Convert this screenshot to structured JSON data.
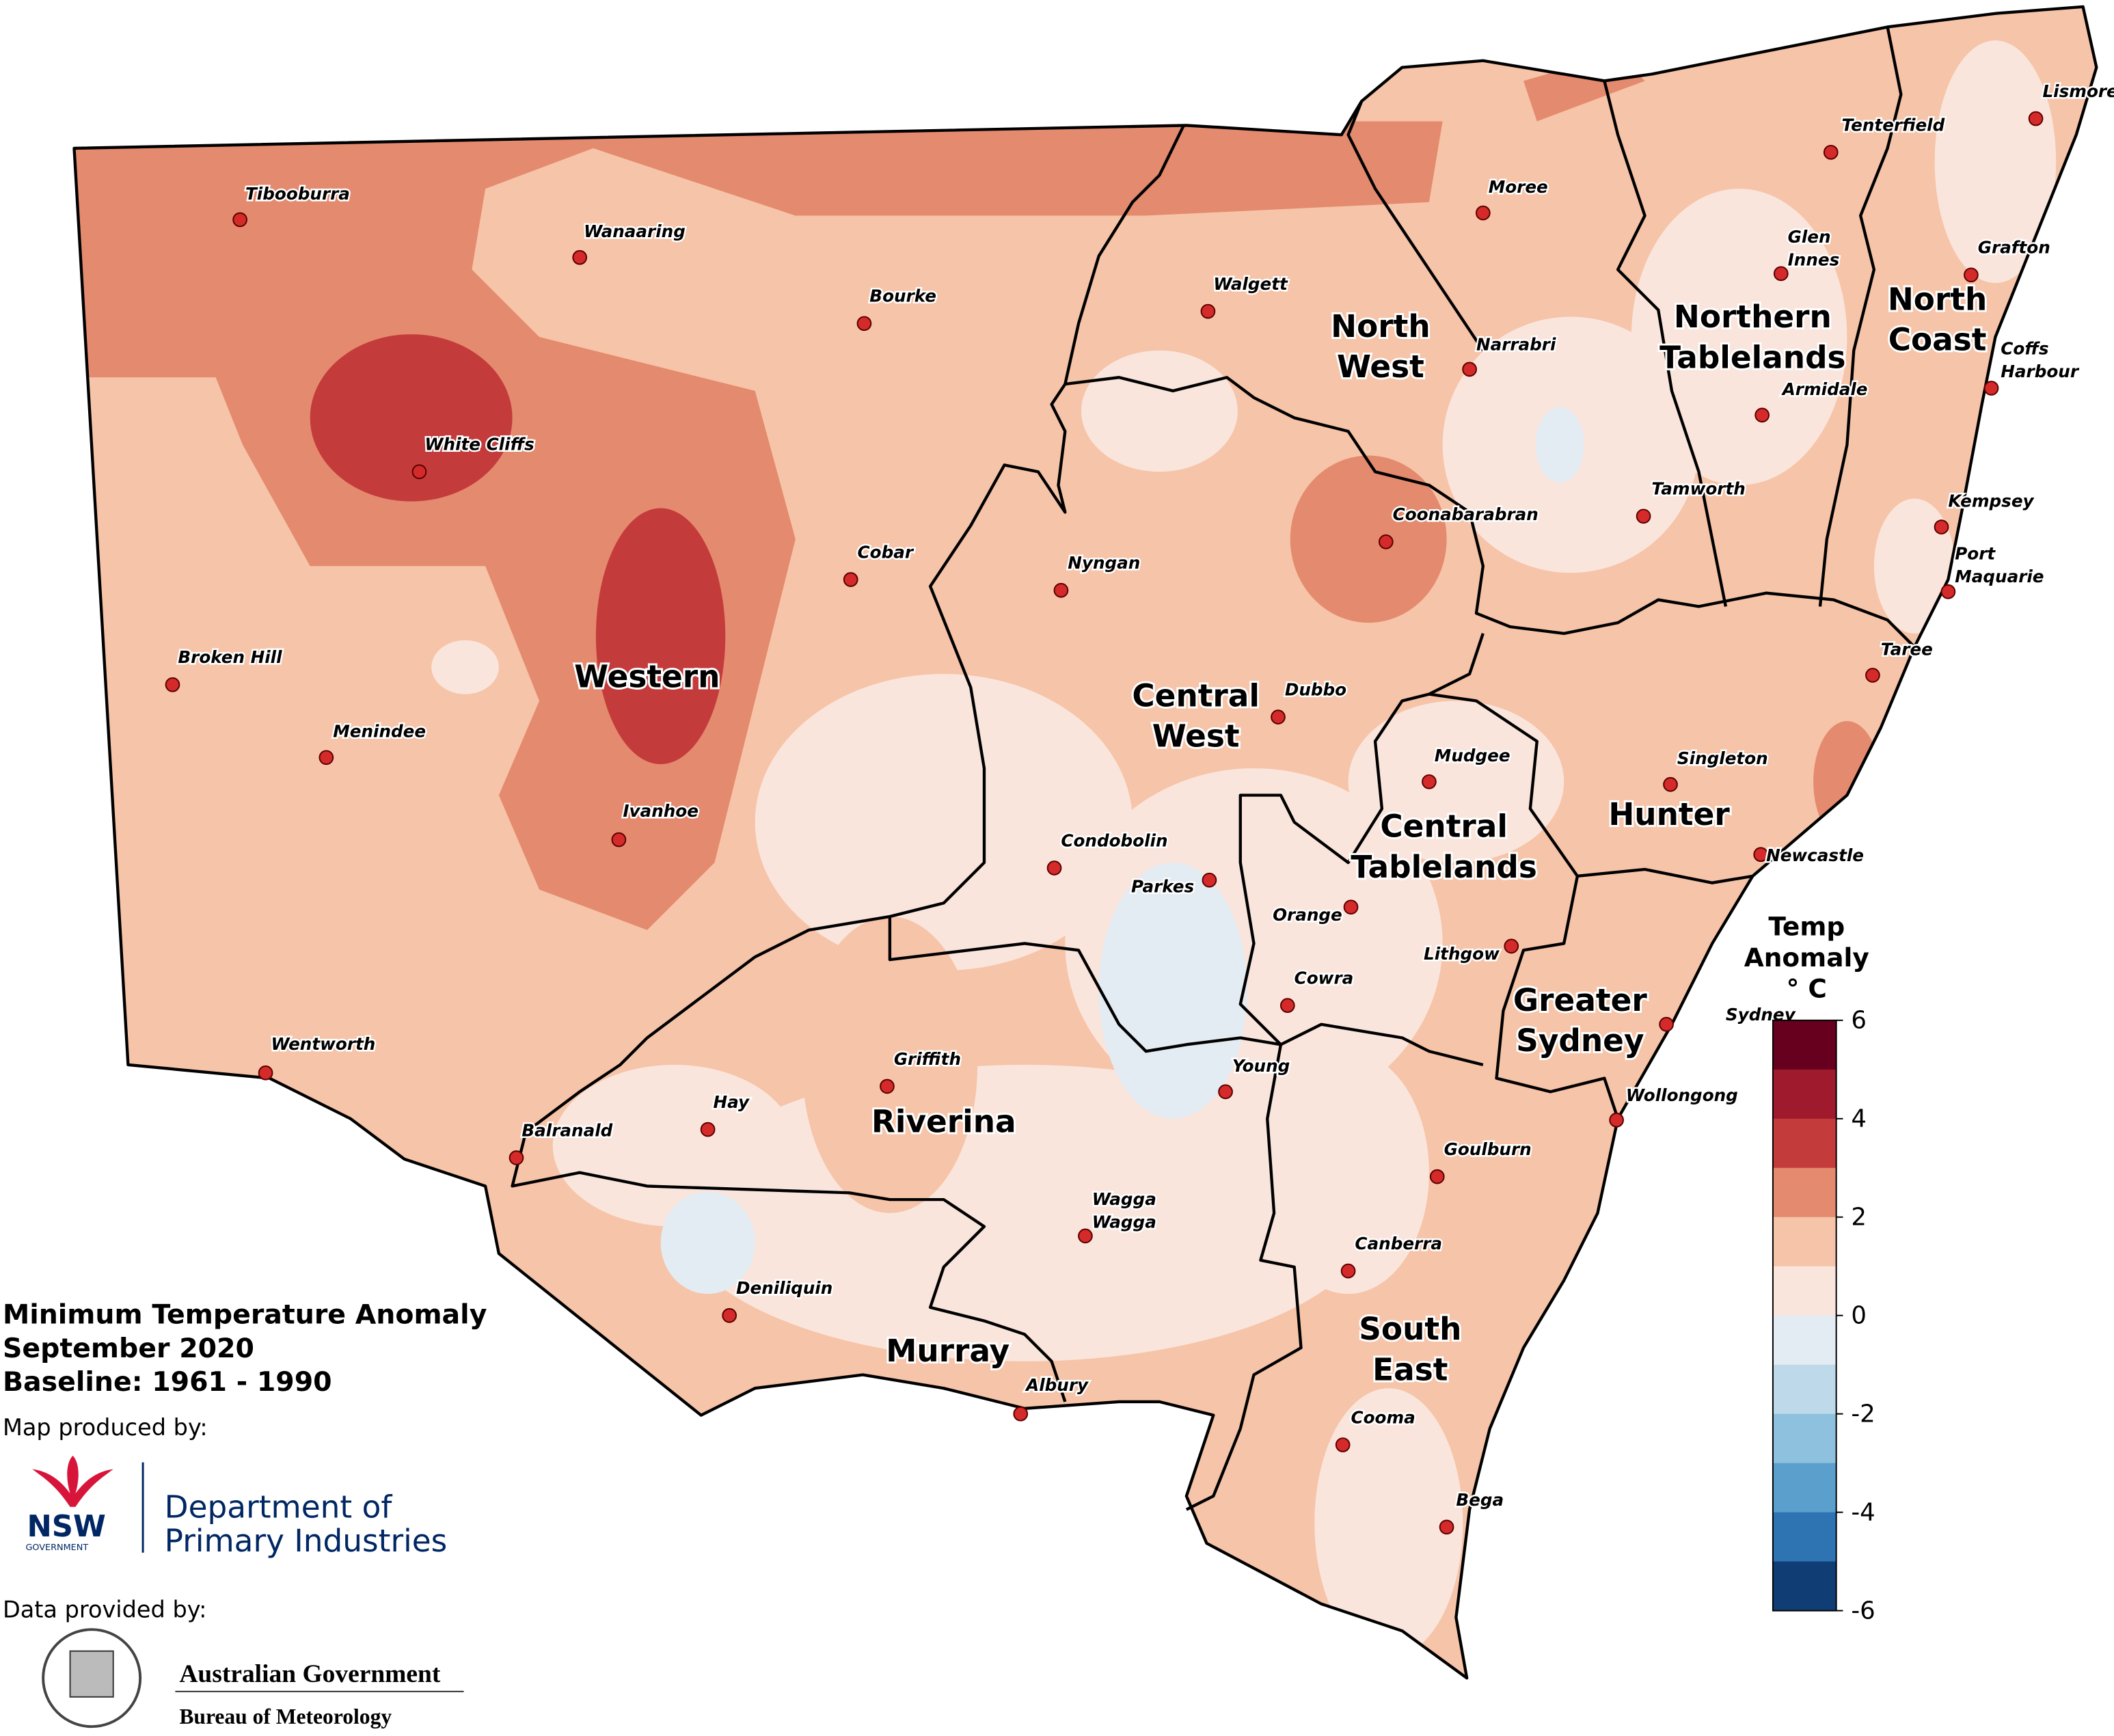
{
  "map": {
    "title": [
      "Minimum Temperature Anomaly",
      "September 2020",
      "Baseline: 1961 - 1990"
    ],
    "produced_by": "Map produced by:",
    "nsw_logo": [
      "NSW",
      "GOVERNMENT"
    ],
    "department": [
      "Department of",
      "Primary Industries"
    ],
    "data_by": "Data provided by:",
    "bom": [
      "Australian Government",
      "Bureau of Meteorology"
    ],
    "regions": [
      [
        "Western"
      ],
      [
        "North",
        "West"
      ],
      [
        "Northern",
        "Tablelands"
      ],
      [
        "North",
        "Coast"
      ],
      [
        "Central",
        "West"
      ],
      [
        "Central",
        "Tablelands"
      ],
      [
        "Hunter"
      ],
      [
        "Greater",
        "Sydney"
      ],
      [
        "Riverina"
      ],
      [
        "Murray"
      ],
      [
        "South",
        "East"
      ]
    ],
    "towns": [
      [
        "Tibooburra"
      ],
      [
        "Wanaaring"
      ],
      [
        "Bourke"
      ],
      [
        "White Cliffs"
      ],
      [
        "Moree"
      ],
      [
        "Walgett"
      ],
      [
        "Narrabri"
      ],
      [
        "Tenterfield"
      ],
      [
        "Lismore"
      ],
      [
        "Glen",
        "Innes"
      ],
      [
        "Grafton"
      ],
      [
        "Coffs",
        "Harbour"
      ],
      [
        "Armidale"
      ],
      [
        "Tamworth"
      ],
      [
        "Kempsey"
      ],
      [
        "Port",
        "Maquarie"
      ],
      [
        "Coonabarabran"
      ],
      [
        "Cobar"
      ],
      [
        "Nyngan"
      ],
      [
        "Broken Hill"
      ],
      [
        "Menindee"
      ],
      [
        "Dubbo"
      ],
      [
        "Taree"
      ],
      [
        "Mudgee"
      ],
      [
        "Singleton"
      ],
      [
        "Ivanhoe"
      ],
      [
        "Condobolin"
      ],
      [
        "Newcastle"
      ],
      [
        "Parkes"
      ],
      [
        "Orange"
      ],
      [
        "Lithgow"
      ],
      [
        "Cowra"
      ],
      [
        "Sydney"
      ],
      [
        "Wentworth"
      ],
      [
        "Griffith"
      ],
      [
        "Young"
      ],
      [
        "Wollongong"
      ],
      [
        "Hay"
      ],
      [
        "Balranald"
      ],
      [
        "Goulburn"
      ],
      [
        "Wagga",
        "Wagga"
      ],
      [
        "Canberra"
      ],
      [
        "Deniliquin"
      ],
      [
        "Albury"
      ],
      [
        "Cooma"
      ],
      [
        "Bega"
      ]
    ],
    "legend": {
      "title": [
        "Temp",
        "Anomaly",
        "° C"
      ],
      "range": [
        -6,
        6
      ],
      "ticks": [
        6,
        4,
        2,
        0,
        -2,
        -4,
        -6
      ],
      "colors": [
        "#67001f",
        "#9e1a2c",
        "#c43b3c",
        "#e48a6e",
        "#f6c4a8",
        "#fae5dc",
        "#e3ebf3",
        "#bed9ea",
        "#8ec1de",
        "#5b9fcd",
        "#2e74b3",
        "#103e74"
      ]
    }
  }
}
